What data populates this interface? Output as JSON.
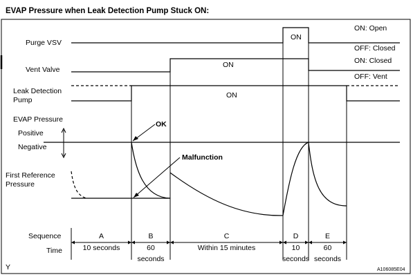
{
  "title": "EVAP Pressure when Leak Detection Pump Stuck ON:",
  "signals": {
    "purge_vsv": "Purge VSV",
    "vent_valve": "Vent Valve",
    "leak_pump_line1": "Leak Detection",
    "leak_pump_line2": "Pump",
    "evap_pressure": "EVAP Pressure",
    "positive": "Positive",
    "negative": "Negative",
    "first_ref_line1": "First Reference",
    "first_ref_line2": "Pressure"
  },
  "state_notes": {
    "purge_on": "ON: Open",
    "purge_off": "OFF: Closed",
    "vent_on": "ON: Closed",
    "vent_off": "OFF: Vent"
  },
  "on_labels": {
    "purge_d": "ON",
    "vent_c": "ON",
    "pump_bcd": "ON"
  },
  "callouts": {
    "ok": "OK",
    "malfunction": "Malfunction"
  },
  "sequence": {
    "row_label": "Sequence",
    "time_label": "Time",
    "steps": [
      {
        "id": "A",
        "time_line1": "10 seconds",
        "time_line2": ""
      },
      {
        "id": "B",
        "time_line1": "60",
        "time_line2": "seconds"
      },
      {
        "id": "C",
        "time_line1": "Within 15 minutes",
        "time_line2": ""
      },
      {
        "id": "D",
        "time_line1": "10",
        "time_line2": "seconds"
      },
      {
        "id": "E",
        "time_line1": "60",
        "time_line2": "seconds"
      }
    ]
  },
  "footer": {
    "left_mark": "Y",
    "figure_code": "A106085E04"
  }
}
